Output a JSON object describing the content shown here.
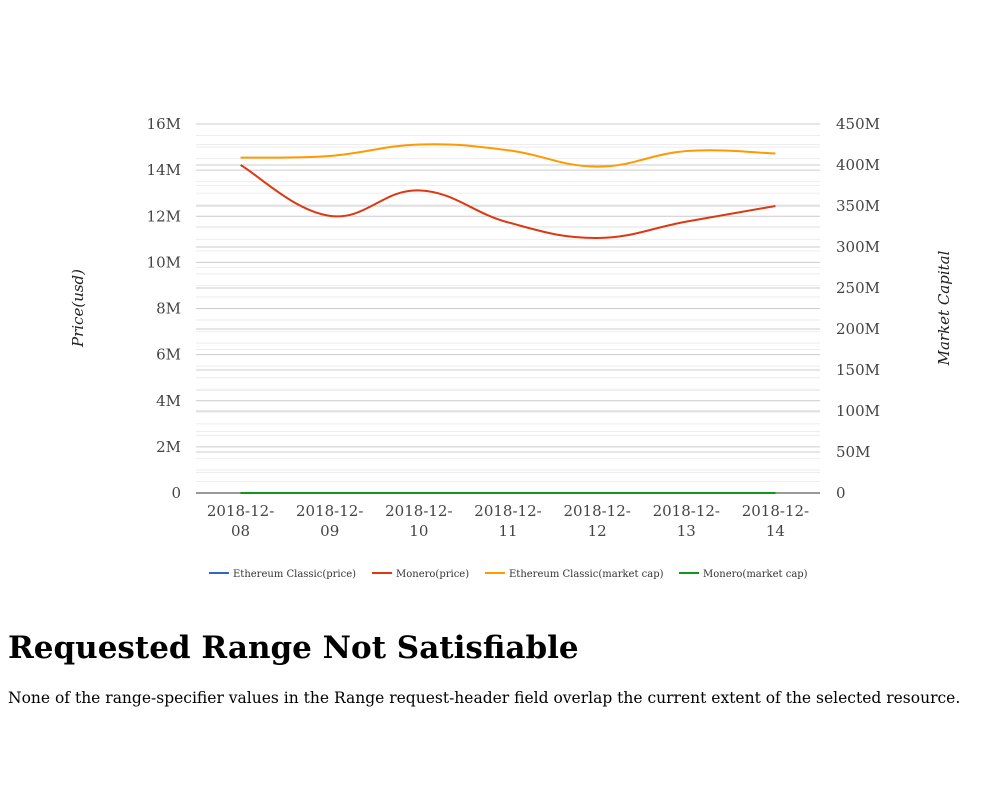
{
  "chart_data": {
    "type": "line",
    "categories": [
      "2018-12-08",
      "2018-12-09",
      "2018-12-10",
      "2018-12-11",
      "2018-12-12",
      "2018-12-13",
      "2018-12-14"
    ],
    "category_lines": [
      [
        "2018-12-",
        "08"
      ],
      [
        "2018-12-",
        "09"
      ],
      [
        "2018-12-",
        "10"
      ],
      [
        "2018-12-",
        "11"
      ],
      [
        "2018-12-",
        "12"
      ],
      [
        "2018-12-",
        "13"
      ],
      [
        "2018-12-",
        "14"
      ]
    ],
    "y_left_label": "Price(usd)",
    "y_right_label": "Market Capital",
    "y_left_range": [
      0,
      16000000
    ],
    "y_right_range": [
      0,
      450000000
    ],
    "y_left_ticks": [
      {
        "value": 0,
        "label": "0"
      },
      {
        "value": 2000000,
        "label": "2M"
      },
      {
        "value": 4000000,
        "label": "4M"
      },
      {
        "value": 6000000,
        "label": "6M"
      },
      {
        "value": 8000000,
        "label": "8M"
      },
      {
        "value": 10000000,
        "label": "10M"
      },
      {
        "value": 12000000,
        "label": "12M"
      },
      {
        "value": 14000000,
        "label": "14M"
      },
      {
        "value": 16000000,
        "label": "16M"
      }
    ],
    "y_right_ticks": [
      {
        "value": 0,
        "label": "0"
      },
      {
        "value": 50000000,
        "label": "50M"
      },
      {
        "value": 100000000,
        "label": "100M"
      },
      {
        "value": 150000000,
        "label": "150M"
      },
      {
        "value": 200000000,
        "label": "200M"
      },
      {
        "value": 250000000,
        "label": "250M"
      },
      {
        "value": 300000000,
        "label": "300M"
      },
      {
        "value": 350000000,
        "label": "350M"
      },
      {
        "value": 400000000,
        "label": "400M"
      },
      {
        "value": 450000000,
        "label": "450M"
      }
    ],
    "grid": true,
    "legend_position": "bottom",
    "series": [
      {
        "name": "Ethereum Classic(price)",
        "color": "#3366cc",
        "axis": "left",
        "values": [
          4.3,
          4.2,
          4.5,
          4.3,
          4.1,
          4.0,
          3.9
        ]
      },
      {
        "name": "Monero(price)",
        "color": "#dc3912",
        "axis": "right",
        "values": [
          400000000,
          338000000,
          369000000,
          330000000,
          311000000,
          331000000,
          350000000
        ]
      },
      {
        "name": "Ethereum Classic(market cap)",
        "color": "#ff9900",
        "axis": "right",
        "values": [
          409000000,
          411000000,
          425000000,
          418000000,
          398000000,
          417000000,
          414000000
        ]
      },
      {
        "name": "Monero(market cap)",
        "color": "#109618",
        "axis": "left",
        "values": [
          65,
          67,
          73,
          69,
          64,
          68,
          68
        ]
      }
    ]
  },
  "error": {
    "title": "Requested Range Not Satisfiable",
    "message": "None of the range-specifier values in the Range request-header field overlap the current extent of the selected resource."
  }
}
